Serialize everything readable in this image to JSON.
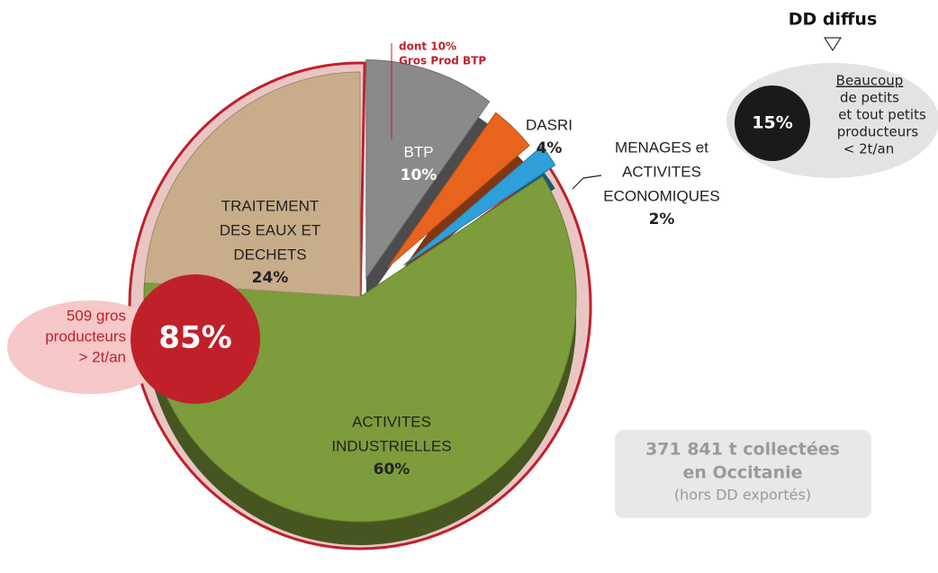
{
  "chart_data": {
    "type": "pie",
    "categories": [
      [
        "BTP"
      ],
      [
        "DASRI"
      ],
      [
        "MENAGES et",
        "ACTIVITES",
        "ECONOMIQUES"
      ],
      [
        "ACTIVITES",
        "INDUSTRIELLES"
      ],
      [
        "TRAITEMENT",
        "DES EAUX ET",
        "DECHETS"
      ]
    ],
    "values": [
      10,
      4,
      2,
      60,
      24
    ],
    "value_labels": [
      "10%",
      "4%",
      "2%",
      "60%",
      "24%"
    ],
    "colors": [
      "#8a8a8a",
      "#e8641e",
      "#2e9fd8",
      "#7d9c3c",
      "#c8ad8a"
    ],
    "annotations": {
      "btp_note": [
        "dont 10%",
        "Gros Prod BTP"
      ],
      "gros": {
        "value_label": "85%",
        "lines": [
          "509 gros",
          "producteurs",
          "> 2t/an"
        ]
      },
      "diffus": {
        "title": "DD diffus",
        "value_label": "15%",
        "lines": [
          "Beaucoup",
          "de petits",
          "et tout petits",
          "producteurs",
          "< 2t/an"
        ]
      },
      "total": [
        "371 841 t collectées",
        "en Occitanie",
        "(hors DD exportés)"
      ]
    }
  }
}
